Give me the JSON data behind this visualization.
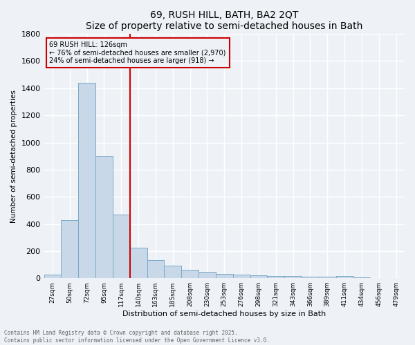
{
  "title": "69, RUSH HILL, BATH, BA2 2QT",
  "subtitle": "Size of property relative to semi-detached houses in Bath",
  "xlabel": "Distribution of semi-detached houses by size in Bath",
  "ylabel": "Number of semi-detached properties",
  "bar_labels": [
    "27sqm",
    "50sqm",
    "72sqm",
    "95sqm",
    "117sqm",
    "140sqm",
    "163sqm",
    "185sqm",
    "208sqm",
    "230sqm",
    "253sqm",
    "276sqm",
    "298sqm",
    "321sqm",
    "343sqm",
    "366sqm",
    "389sqm",
    "411sqm",
    "434sqm",
    "456sqm",
    "479sqm"
  ],
  "bar_values": [
    28,
    430,
    1440,
    900,
    470,
    225,
    135,
    95,
    62,
    48,
    32,
    25,
    20,
    17,
    14,
    12,
    10,
    15,
    5,
    3,
    2
  ],
  "bar_color": "#c8d8e8",
  "bar_edge_color": "#7aaac8",
  "ylim": [
    0,
    1800
  ],
  "yticks": [
    0,
    200,
    400,
    600,
    800,
    1000,
    1200,
    1400,
    1600,
    1800
  ],
  "vline_x_index": 4.5,
  "vline_color": "#cc0000",
  "annotation_title": "69 RUSH HILL: 126sqm",
  "annotation_line1": "← 76% of semi-detached houses are smaller (2,970)",
  "annotation_line2": "24% of semi-detached houses are larger (918) →",
  "annotation_box_color": "#cc0000",
  "footer_line1": "Contains HM Land Registry data © Crown copyright and database right 2025.",
  "footer_line2": "Contains public sector information licensed under the Open Government Licence v3.0.",
  "bg_color": "#eef2f7",
  "plot_bg_color": "#eef2f7",
  "grid_color": "white"
}
